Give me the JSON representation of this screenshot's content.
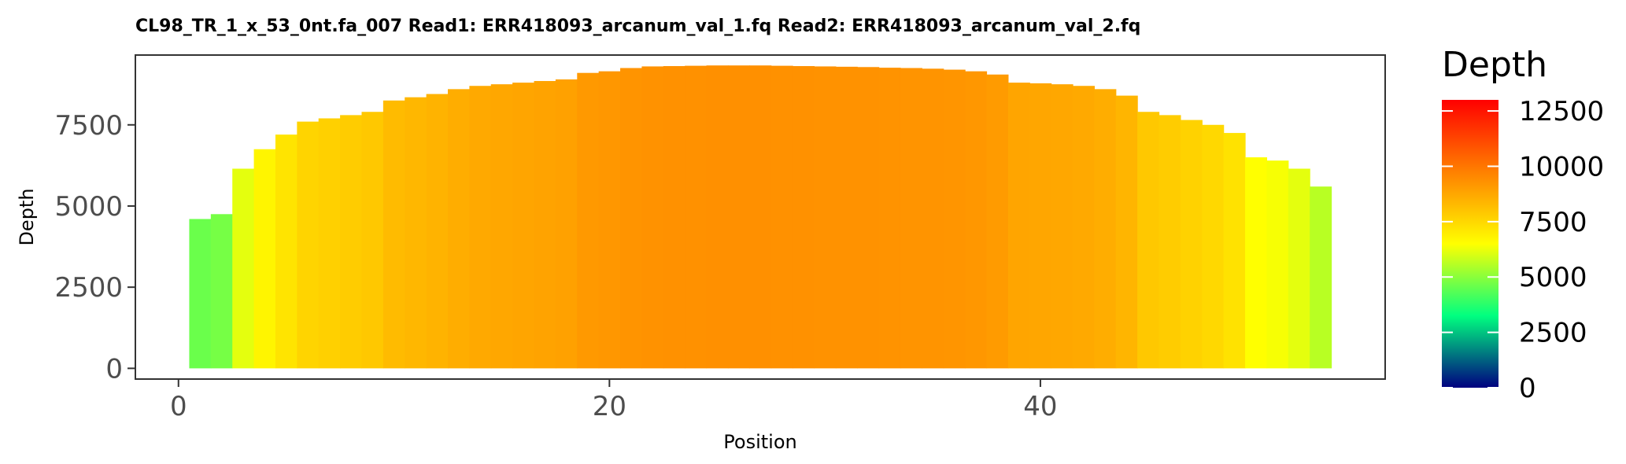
{
  "chart_data": {
    "type": "bar",
    "title": "CL98_TR_1_x_53_0nt.fa_007   Read1: ERR418093_arcanum_val_1.fq   Read2: ERR418093_arcanum_val_2.fq",
    "xlabel": "Position",
    "ylabel": "Depth",
    "xlim": [
      -2,
      56
    ],
    "ylim": [
      -330,
      9650
    ],
    "xticks": [
      "0",
      "20",
      "40"
    ],
    "yticks": [
      "0",
      "2500",
      "5000",
      "7500"
    ],
    "legend": {
      "title": "Depth",
      "placement": "right",
      "range": [
        0,
        13000
      ],
      "ticks": [
        "0",
        "2500",
        "5000",
        "7500",
        "10000",
        "12500"
      ],
      "colors": [
        "#000080",
        "#00ff80",
        "#ffff00",
        "#ff8000",
        "#ff0000"
      ]
    },
    "x": [
      1,
      2,
      3,
      4,
      5,
      6,
      7,
      8,
      9,
      10,
      11,
      12,
      13,
      14,
      15,
      16,
      17,
      18,
      19,
      20,
      21,
      22,
      23,
      24,
      25,
      26,
      27,
      28,
      29,
      30,
      31,
      32,
      33,
      34,
      35,
      36,
      37,
      38,
      39,
      40,
      41,
      42,
      43,
      44,
      45,
      46,
      47,
      48,
      49,
      50,
      51,
      52,
      53
    ],
    "values": [
      4600,
      4750,
      6150,
      6750,
      7200,
      7600,
      7700,
      7800,
      7900,
      8250,
      8350,
      8450,
      8600,
      8700,
      8750,
      8800,
      8850,
      8900,
      9100,
      9150,
      9250,
      9300,
      9310,
      9320,
      9330,
      9330,
      9330,
      9320,
      9310,
      9300,
      9290,
      9280,
      9260,
      9250,
      9230,
      9200,
      9150,
      9050,
      8800,
      8780,
      8750,
      8700,
      8600,
      8400,
      7900,
      7800,
      7650,
      7500,
      7250,
      6500,
      6400,
      6150,
      5600
    ]
  }
}
